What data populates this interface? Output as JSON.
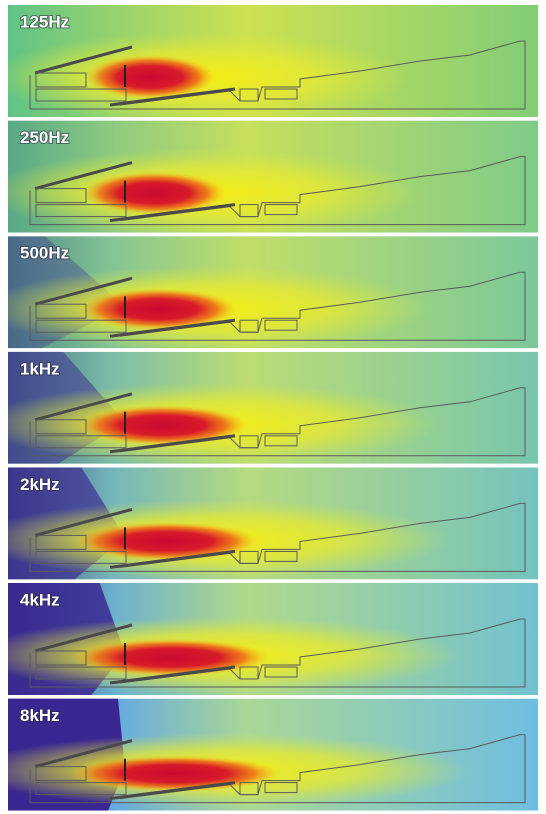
{
  "panels": [
    {
      "label": "125Hz"
    },
    {
      "label": "250Hz"
    },
    {
      "label": "500Hz"
    },
    {
      "label": "1kHz"
    },
    {
      "label": "2kHz"
    },
    {
      "label": "4kHz"
    },
    {
      "label": "8kHz"
    }
  ]
}
